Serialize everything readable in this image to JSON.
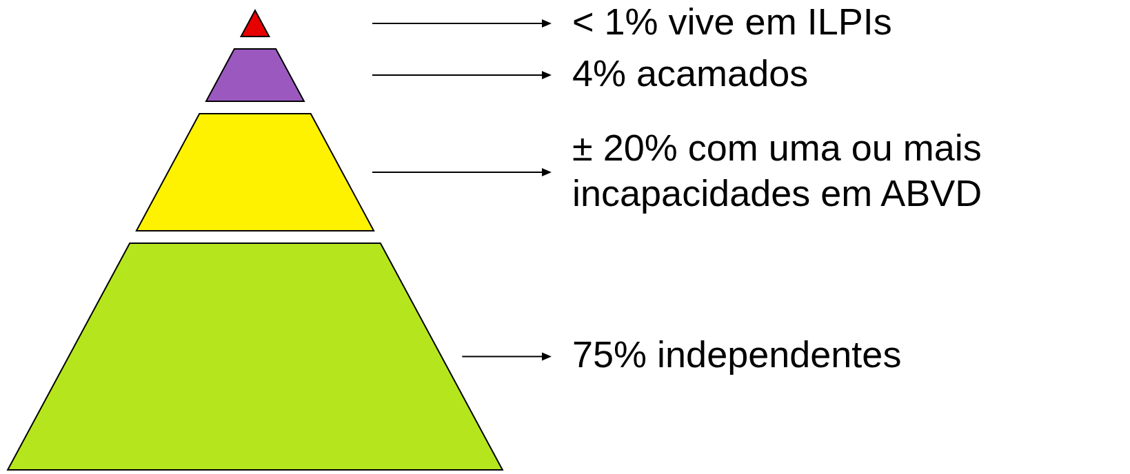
{
  "chart_data": {
    "type": "other",
    "categories": [
      "vive em ILPIs",
      "acamados",
      "com uma ou mais incapacidades em ABVD",
      "independentes"
    ],
    "values": [
      1,
      4,
      20,
      75
    ],
    "value_labels": [
      "< 1%",
      "4%",
      "± 20%",
      "75%"
    ],
    "colors": [
      "#e60000",
      "#9b59c0",
      "#fff200",
      "#b5e61d"
    ]
  }
}
